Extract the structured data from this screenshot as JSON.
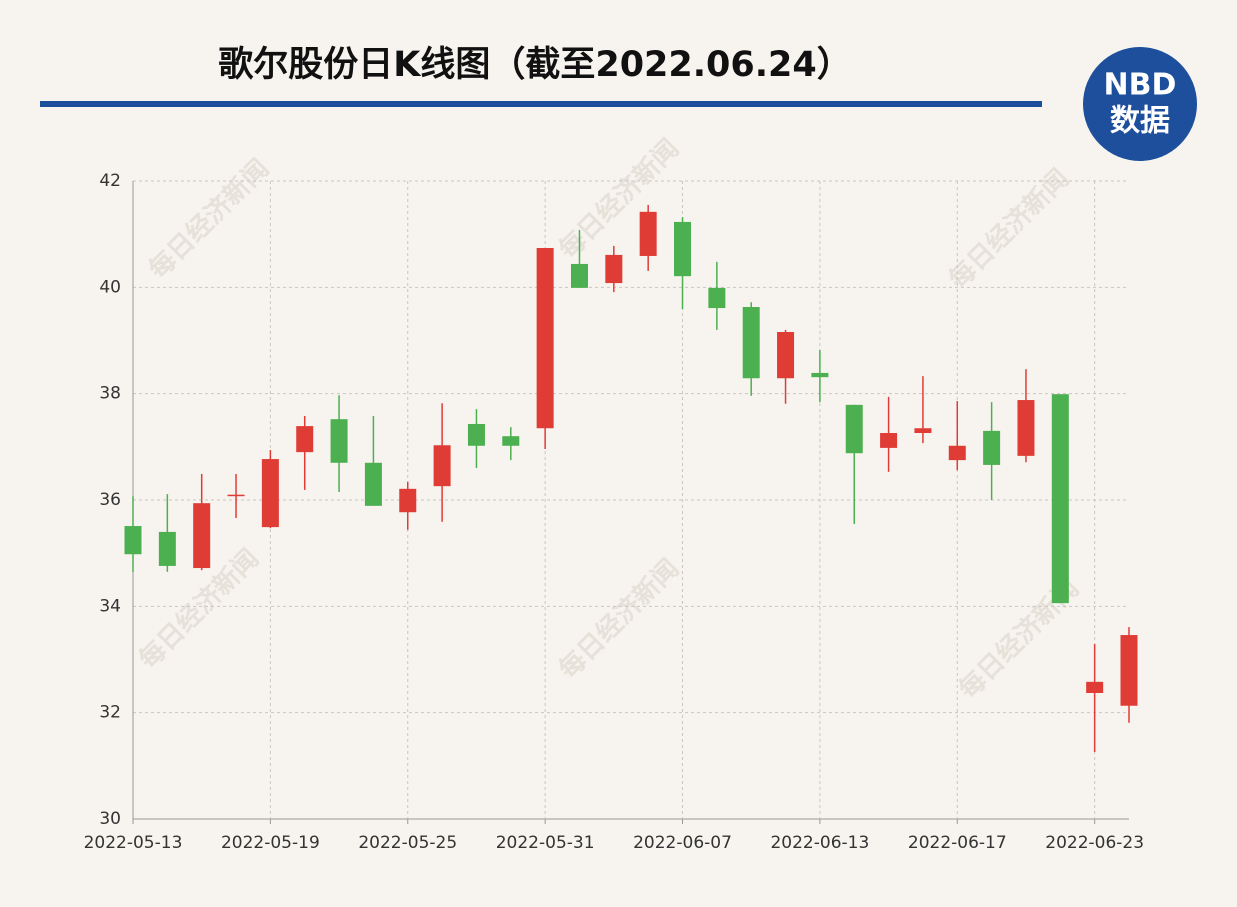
{
  "chart_data": {
    "type": "candlestick",
    "title": "歌尔股份日K线图（截至2022.06.24）",
    "logo": [
      "NBD",
      "数据"
    ],
    "watermark": "每日经济新闻",
    "categories": [
      "2022-05-13",
      null,
      null,
      null,
      "2022-05-19",
      null,
      null,
      null,
      "2022-05-25",
      null,
      null,
      null,
      "2022-05-31",
      null,
      null,
      null,
      "2022-06-07",
      null,
      null,
      null,
      "2022-06-13",
      null,
      null,
      null,
      "2022-06-17",
      null,
      null,
      null,
      "2022-06-23",
      null
    ],
    "open": [
      35.51,
      35.4,
      34.72,
      36.08,
      35.49,
      36.9,
      37.52,
      36.7,
      35.77,
      36.26,
      37.43,
      37.2,
      37.35,
      40.44,
      40.08,
      40.59,
      41.23,
      39.99,
      39.63,
      38.29,
      38.39,
      37.79,
      36.98,
      37.26,
      36.75,
      37.3,
      36.83,
      37.99,
      32.37,
      32.13
    ],
    "high": [
      36.07,
      36.11,
      36.49,
      36.49,
      36.94,
      37.58,
      37.97,
      37.58,
      36.34,
      37.82,
      37.71,
      37.37,
      40.74,
      41.08,
      40.78,
      41.55,
      41.32,
      40.48,
      39.72,
      39.2,
      38.82,
      37.79,
      37.94,
      38.33,
      37.86,
      37.84,
      38.46,
      37.99,
      33.29,
      33.61
    ],
    "low": [
      34.65,
      34.65,
      34.68,
      35.66,
      35.47,
      36.19,
      36.15,
      35.89,
      35.44,
      35.59,
      36.6,
      36.75,
      36.96,
      39.99,
      39.91,
      40.31,
      39.59,
      39.2,
      37.96,
      37.81,
      37.84,
      35.55,
      36.53,
      37.07,
      36.56,
      36.0,
      36.71,
      34.06,
      31.26,
      31.81
    ],
    "close": [
      34.98,
      34.76,
      35.94,
      36.1,
      36.77,
      37.39,
      36.7,
      35.89,
      36.21,
      37.03,
      37.02,
      37.02,
      40.74,
      39.99,
      40.61,
      41.42,
      40.21,
      39.61,
      38.29,
      39.16,
      38.31,
      36.88,
      37.26,
      37.35,
      37.02,
      36.66,
      37.88,
      34.06,
      32.58,
      33.46
    ],
    "up_color": "#e03c36",
    "down_color": "#4caf50",
    "ylim": [
      30,
      42
    ],
    "yticks": [
      30,
      32,
      34,
      36,
      38,
      40,
      42
    ],
    "grid": true
  }
}
